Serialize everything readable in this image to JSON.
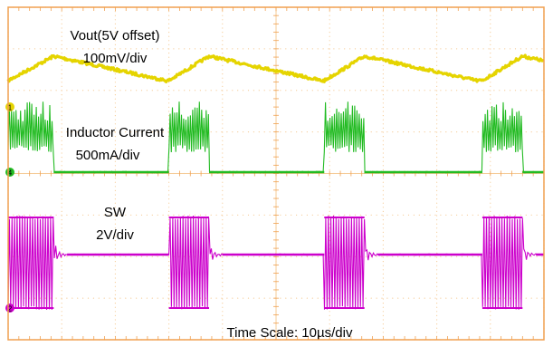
{
  "chart_data": {
    "type": "line",
    "title": "",
    "time_scale_label": "Time Scale: 10µs/div",
    "x_units": "µs",
    "xlim": [
      0,
      100
    ],
    "divisions": {
      "horizontal": 10,
      "vertical": 8
    },
    "grid": true,
    "annotations": [
      {
        "trace": "vout",
        "lines": [
          "Vout(5V offset)",
          "100mV/div"
        ]
      },
      {
        "trace": "il",
        "lines": [
          "Inductor Current",
          "500mA/div"
        ]
      },
      {
        "trace": "sw",
        "lines": [
          "SW",
          "2V/div"
        ]
      }
    ],
    "channel_markers": [
      {
        "id": "ch1",
        "label": "1",
        "color": "#e5d400"
      },
      {
        "id": "ch4",
        "label": "4",
        "color": "#22bb22"
      },
      {
        "id": "ch2",
        "label": "2",
        "color": "#cc00cc"
      }
    ],
    "burst_windows_us": [
      [
        0,
        8.5
      ],
      [
        30,
        37.5
      ],
      [
        59,
        66.5
      ],
      [
        88.5,
        96
      ]
    ],
    "series": [
      {
        "name": "Vout(5V offset)",
        "color": "#e5d400",
        "scale": "100mV/div",
        "waveform": "ripple: rises during each switching burst, decays slowly in between"
      },
      {
        "name": "Inductor Current",
        "color": "#22bb22",
        "scale": "500mA/div",
        "waveform": "triangular current pulses during bursts, zero otherwise"
      },
      {
        "name": "SW",
        "color": "#cc00cc",
        "scale": "2V/div",
        "waveform": "square switching pulses during bursts, ringing then flat level otherwise"
      }
    ]
  },
  "colors": {
    "frame": "#f0a050",
    "grid": "#f5cc99",
    "vout": "#e5d400",
    "il": "#22bb22",
    "sw": "#cc00cc"
  }
}
